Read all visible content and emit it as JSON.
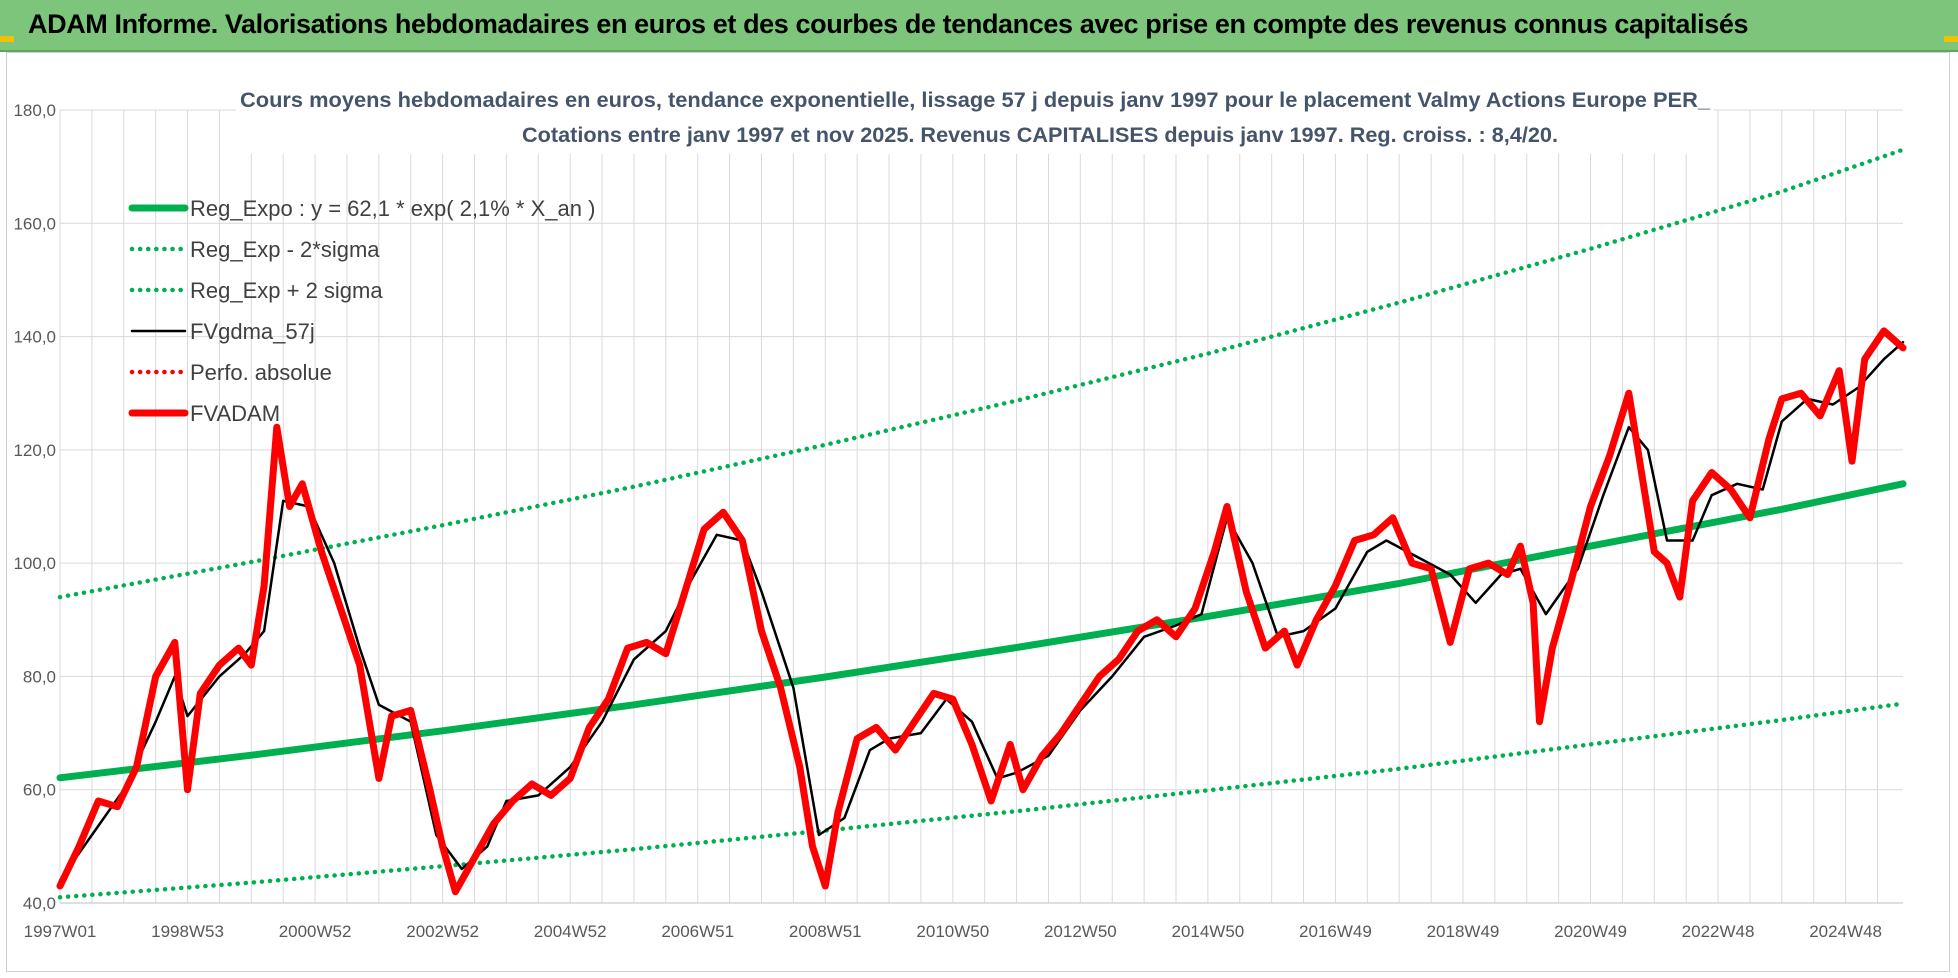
{
  "page": {
    "banner_title": "ADAM Informe. Valorisations hebdomadaires en euros et des courbes de tendances avec prise en compte des revenus connus capitalisés"
  },
  "colors": {
    "banner_bg": "#7dc57a",
    "reg_expo": "#00b050",
    "fvgdma": "#000000",
    "fvadam": "#ff0000",
    "perfo": "#ff0000"
  },
  "chart_data": {
    "type": "line",
    "title": "Cours moyens hebdomadaires en euros, tendance exponentielle, lissage 57 j depuis janv 1997 pour le placement Valmy Actions Europe PER_",
    "subtitle": "Cotations entre janv 1997 et nov 2025. Revenus CAPITALISES depuis janv 1997. Reg. croiss. : 8,4/20.",
    "xlabel": "",
    "ylabel": "",
    "x_unit": "year",
    "xlim": [
      1997.0,
      2025.9
    ],
    "ylim": [
      40,
      180
    ],
    "y_ticks": [
      "40,0",
      "60,0",
      "80,0",
      "100,0",
      "120,0",
      "140,0",
      "160,0",
      "180,0"
    ],
    "y_tick_values": [
      40,
      60,
      80,
      100,
      120,
      140,
      160,
      180
    ],
    "x_ticks": [
      "1997W01",
      "1998W53",
      "2000W52",
      "2002W52",
      "2004W52",
      "2006W51",
      "2008W51",
      "2010W50",
      "2012W50",
      "2014W50",
      "2016W49",
      "2018W49",
      "2020W49",
      "2022W48",
      "2024W48"
    ],
    "x_tick_values": [
      1997.0,
      1999.0,
      2001.0,
      2003.0,
      2005.0,
      2007.0,
      2009.0,
      2011.0,
      2013.0,
      2015.0,
      2017.0,
      2019.0,
      2021.0,
      2023.0,
      2025.0
    ],
    "grid": true,
    "legend_position": "top-left",
    "series": [
      {
        "name": "Reg_Expo : y = 62,1 * exp( 2,1% *  X_an )",
        "style": "solid-thick",
        "color": "#00b050",
        "x": [
          1997.0,
          2000.0,
          2003.0,
          2006.0,
          2009.0,
          2012.0,
          2015.0,
          2018.0,
          2021.0,
          2024.0,
          2025.9
        ],
        "y": [
          62.1,
          66.1,
          70.4,
          75.0,
          79.9,
          85.1,
          90.6,
          96.4,
          103.0,
          109.5,
          114.0
        ]
      },
      {
        "name": "Reg_Exp - 2*sigma",
        "style": "dotted",
        "color": "#00b050",
        "x": [
          1997.0,
          2000.0,
          2003.0,
          2006.0,
          2009.0,
          2012.0,
          2015.0,
          2018.0,
          2021.0,
          2024.0,
          2025.9
        ],
        "y": [
          41.0,
          43.6,
          46.5,
          49.5,
          52.8,
          56.2,
          59.9,
          63.7,
          68.0,
          72.3,
          75.2
        ]
      },
      {
        "name": "Reg_Exp + 2 sigma",
        "style": "dotted",
        "color": "#00b050",
        "x": [
          1997.0,
          2000.0,
          2003.0,
          2006.0,
          2009.0,
          2012.0,
          2015.0,
          2018.0,
          2021.0,
          2024.0,
          2025.9
        ],
        "y": [
          94.0,
          100.2,
          106.7,
          113.5,
          120.9,
          128.7,
          137.0,
          146.0,
          155.5,
          165.6,
          173.0
        ]
      },
      {
        "name": "FVgdma_57j",
        "style": "solid",
        "color": "#000000",
        "x": [
          1997.0,
          1997.5,
          1998.0,
          1998.5,
          1998.8,
          1999.0,
          1999.5,
          1999.9,
          2000.2,
          2000.5,
          2000.9,
          2001.3,
          2001.7,
          2002.0,
          2002.5,
          2002.9,
          2003.3,
          2003.7,
          2004.0,
          2004.5,
          2005.0,
          2005.5,
          2006.0,
          2006.5,
          2006.9,
          2007.3,
          2007.7,
          2008.0,
          2008.5,
          2008.9,
          2009.3,
          2009.7,
          2010.0,
          2010.5,
          2010.9,
          2011.3,
          2011.7,
          2012.0,
          2012.5,
          2013.0,
          2013.5,
          2014.0,
          2014.5,
          2014.9,
          2015.3,
          2015.7,
          2016.1,
          2016.5,
          2017.0,
          2017.5,
          2017.8,
          2018.3,
          2018.8,
          2019.2,
          2019.6,
          2019.9,
          2020.3,
          2020.8,
          2021.2,
          2021.6,
          2021.9,
          2022.2,
          2022.6,
          2022.9,
          2023.3,
          2023.7,
          2024.0,
          2024.4,
          2024.8,
          2025.2,
          2025.6,
          2025.9
        ],
        "y": [
          44.0,
          52.0,
          60.0,
          72.0,
          80.0,
          73.0,
          80.0,
          84.0,
          88.0,
          111.0,
          110.0,
          100.0,
          85.0,
          75.0,
          72.0,
          52.0,
          46.0,
          50.0,
          58.0,
          59.0,
          64.0,
          72.0,
          83.0,
          88.0,
          97.0,
          105.0,
          104.0,
          95.0,
          78.0,
          52.0,
          55.0,
          67.0,
          69.0,
          70.0,
          76.0,
          72.0,
          62.0,
          63.0,
          66.0,
          74.0,
          80.0,
          87.0,
          89.0,
          91.0,
          108.0,
          100.0,
          87.0,
          88.0,
          92.0,
          102.0,
          104.0,
          101.0,
          98.0,
          93.0,
          98.0,
          99.0,
          91.0,
          99.0,
          112.0,
          124.0,
          120.0,
          104.0,
          104.0,
          112.0,
          114.0,
          113.0,
          125.0,
          129.0,
          128.0,
          131.0,
          136.0,
          139.0
        ]
      },
      {
        "name": "Perfo. absolue",
        "style": "dotted",
        "color": "#ff0000",
        "x": [],
        "y": []
      },
      {
        "name": "FVADAM",
        "style": "solid-thick",
        "color": "#ff0000",
        "x": [
          1997.0,
          1997.3,
          1997.6,
          1997.9,
          1998.2,
          1998.5,
          1998.8,
          1999.0,
          1999.2,
          1999.5,
          1999.8,
          2000.0,
          2000.2,
          2000.4,
          2000.6,
          2000.8,
          2001.1,
          2001.4,
          2001.7,
          2002.0,
          2002.2,
          2002.5,
          2002.8,
          2003.0,
          2003.2,
          2003.5,
          2003.8,
          2004.1,
          2004.4,
          2004.7,
          2005.0,
          2005.3,
          2005.6,
          2005.9,
          2006.2,
          2006.5,
          2006.8,
          2007.1,
          2007.4,
          2007.7,
          2008.0,
          2008.3,
          2008.6,
          2008.8,
          2009.0,
          2009.2,
          2009.5,
          2009.8,
          2010.1,
          2010.4,
          2010.7,
          2011.0,
          2011.3,
          2011.6,
          2011.9,
          2012.1,
          2012.4,
          2012.7,
          2013.0,
          2013.3,
          2013.6,
          2013.9,
          2014.2,
          2014.5,
          2014.8,
          2015.1,
          2015.3,
          2015.6,
          2015.9,
          2016.2,
          2016.4,
          2016.7,
          2017.0,
          2017.3,
          2017.6,
          2017.9,
          2018.2,
          2018.5,
          2018.8,
          2019.1,
          2019.4,
          2019.7,
          2019.9,
          2020.1,
          2020.2,
          2020.4,
          2020.7,
          2021.0,
          2021.3,
          2021.6,
          2021.8,
          2022.0,
          2022.2,
          2022.4,
          2022.6,
          2022.9,
          2023.2,
          2023.5,
          2023.8,
          2024.0,
          2024.3,
          2024.6,
          2024.9,
          2025.1,
          2025.3,
          2025.6,
          2025.9
        ],
        "y": [
          43.0,
          50.0,
          58.0,
          57.0,
          64.0,
          80.0,
          86.0,
          60.0,
          77.0,
          82.0,
          85.0,
          82.0,
          96.0,
          124.0,
          110.0,
          114.0,
          102.0,
          92.0,
          82.0,
          62.0,
          73.0,
          74.0,
          60.0,
          50.0,
          42.0,
          48.0,
          54.0,
          58.0,
          61.0,
          59.0,
          62.0,
          71.0,
          76.0,
          85.0,
          86.0,
          84.0,
          95.0,
          106.0,
          109.0,
          104.0,
          88.0,
          78.0,
          64.0,
          50.0,
          43.0,
          56.0,
          69.0,
          71.0,
          67.0,
          72.0,
          77.0,
          76.0,
          68.0,
          58.0,
          68.0,
          60.0,
          66.0,
          70.0,
          75.0,
          80.0,
          83.0,
          88.0,
          90.0,
          87.0,
          92.0,
          102.0,
          110.0,
          95.0,
          85.0,
          88.0,
          82.0,
          90.0,
          96.0,
          104.0,
          105.0,
          108.0,
          100.0,
          99.0,
          86.0,
          99.0,
          100.0,
          98.0,
          103.0,
          93.0,
          72.0,
          85.0,
          97.0,
          110.0,
          119.0,
          130.0,
          116.0,
          102.0,
          100.0,
          94.0,
          111.0,
          116.0,
          113.0,
          108.0,
          122.0,
          129.0,
          130.0,
          126.0,
          134.0,
          118.0,
          136.0,
          141.0,
          138.0
        ]
      }
    ]
  }
}
